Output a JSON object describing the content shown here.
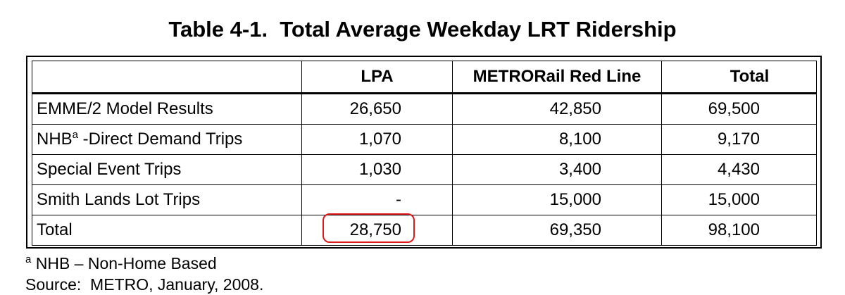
{
  "title": "Table 4-1.  Total Average Weekday LRT Ridership",
  "table": {
    "headers": [
      "",
      "LPA",
      "METRORail Red Line",
      "Total"
    ],
    "rows": [
      {
        "label": "EMME/2 Model Results",
        "label_sup": "",
        "label_rest": "",
        "lpa": "26,650",
        "red_line": "42,850",
        "total": "69,500"
      },
      {
        "label": "NHB",
        "label_sup": "a",
        "label_rest": " -Direct Demand Trips",
        "lpa": "1,070",
        "red_line": "8,100",
        "total": "9,170"
      },
      {
        "label": "Special Event Trips",
        "label_sup": "",
        "label_rest": "",
        "lpa": "1,030",
        "red_line": "3,400",
        "total": "4,430"
      },
      {
        "label": "Smith Lands Lot Trips",
        "label_sup": "",
        "label_rest": "",
        "lpa": "-",
        "red_line": "15,000",
        "total": "15,000"
      },
      {
        "label": "Total",
        "label_sup": "",
        "label_rest": "",
        "lpa": "28,750",
        "red_line": "69,350",
        "total": "98,100"
      }
    ]
  },
  "highlight_color": "#e01818",
  "footnote": {
    "marker": "a",
    "text": " NHB – Non-Home Based"
  },
  "source": "Source:  METRO, January, 2008."
}
